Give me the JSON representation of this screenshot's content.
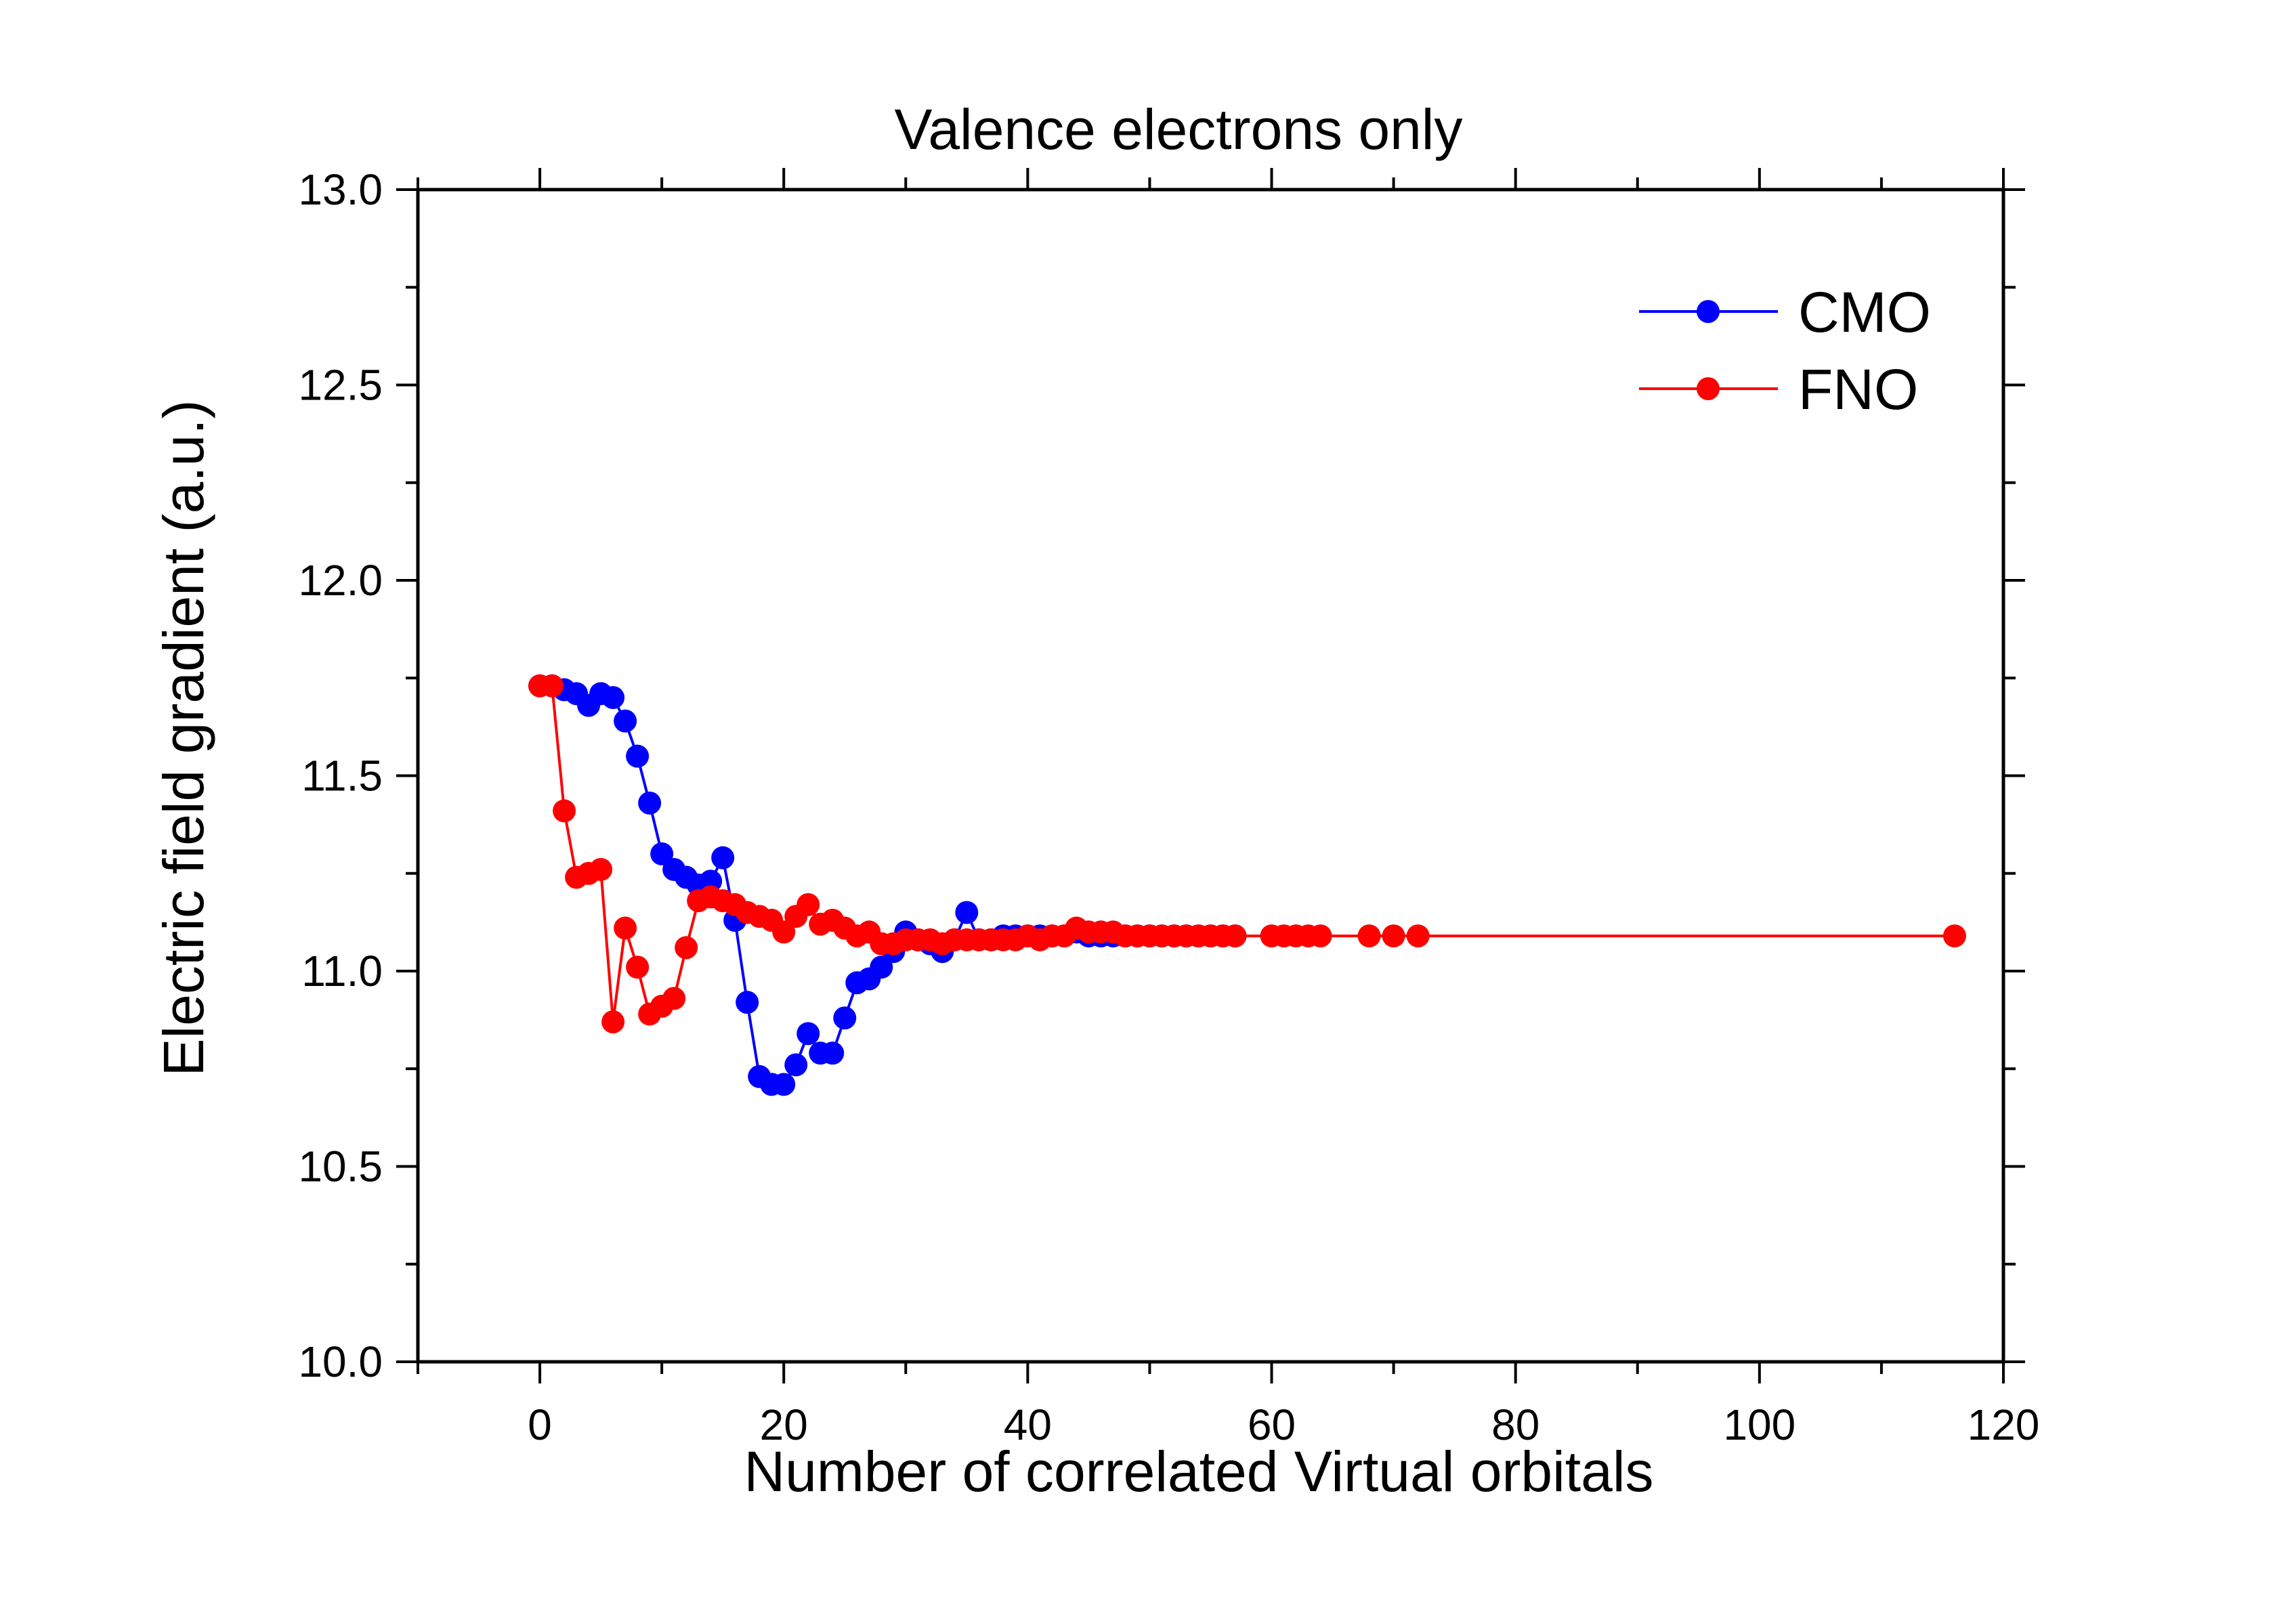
{
  "chart_data": {
    "type": "line",
    "title": "Valence electrons only",
    "xlabel": "Number of correlated Virtual orbitals",
    "ylabel": "Electric field gradient (a.u.)",
    "xlim": [
      -10,
      120
    ],
    "ylim": [
      10.0,
      13.0
    ],
    "xticks": [
      0,
      20,
      40,
      60,
      80,
      100,
      120
    ],
    "xtick_labels": [
      "0",
      "20",
      "40",
      "60",
      "80",
      "100",
      "120"
    ],
    "yticks": [
      10.0,
      10.5,
      11.0,
      11.5,
      12.0,
      12.5,
      13.0
    ],
    "ytick_labels": [
      "10.0",
      "10.5",
      "11.0",
      "11.5",
      "12.0",
      "12.5",
      "13.0"
    ],
    "grid": false,
    "legend_position": "top-right",
    "series": [
      {
        "name": "CMO",
        "color": "#0000ff",
        "x": [
          0,
          1,
          2,
          3,
          4,
          5,
          6,
          7,
          8,
          9,
          10,
          11,
          12,
          13,
          14,
          15,
          16,
          17,
          18,
          19,
          20,
          21,
          22,
          23,
          24,
          25,
          26,
          27,
          28,
          29,
          30,
          31,
          32,
          33,
          34,
          35,
          36,
          37,
          38,
          39,
          40,
          41,
          42,
          43,
          44,
          45,
          46,
          47,
          48,
          49,
          50,
          51,
          52,
          53,
          54,
          55,
          56,
          57
        ],
        "y": [
          11.73,
          11.73,
          11.72,
          11.71,
          11.68,
          11.71,
          11.7,
          11.64,
          11.55,
          11.43,
          11.3,
          11.26,
          11.24,
          11.22,
          11.23,
          11.29,
          11.13,
          10.92,
          10.73,
          10.71,
          10.71,
          10.76,
          10.84,
          10.79,
          10.79,
          10.88,
          10.97,
          10.98,
          11.01,
          11.05,
          11.1,
          11.08,
          11.07,
          11.05,
          11.08,
          11.15,
          11.08,
          11.08,
          11.09,
          11.09,
          11.09,
          11.09,
          11.09,
          11.09,
          11.1,
          11.09,
          11.09,
          11.09,
          11.09,
          11.09,
          11.09,
          11.09,
          11.09,
          11.09,
          11.09,
          11.09,
          11.09,
          11.09
        ]
      },
      {
        "name": "FNO",
        "color": "#ff0000",
        "x": [
          0,
          1,
          2,
          3,
          4,
          5,
          6,
          7,
          8,
          9,
          10,
          11,
          12,
          13,
          14,
          15,
          16,
          17,
          18,
          19,
          20,
          21,
          22,
          23,
          24,
          25,
          26,
          27,
          28,
          29,
          30,
          31,
          32,
          33,
          34,
          35,
          36,
          37,
          38,
          39,
          40,
          41,
          42,
          43,
          44,
          45,
          46,
          47,
          48,
          49,
          50,
          51,
          52,
          53,
          54,
          55,
          56,
          57,
          60,
          61,
          62,
          63,
          64,
          68,
          70,
          72,
          116
        ],
        "y": [
          11.73,
          11.73,
          11.41,
          11.24,
          11.25,
          11.26,
          10.87,
          11.11,
          11.01,
          10.89,
          10.91,
          10.93,
          11.06,
          11.18,
          11.19,
          11.18,
          11.17,
          11.15,
          11.14,
          11.13,
          11.1,
          11.14,
          11.17,
          11.12,
          11.13,
          11.11,
          11.09,
          11.1,
          11.07,
          11.07,
          11.08,
          11.08,
          11.08,
          11.07,
          11.08,
          11.08,
          11.08,
          11.08,
          11.08,
          11.08,
          11.09,
          11.08,
          11.09,
          11.09,
          11.11,
          11.1,
          11.1,
          11.1,
          11.09,
          11.09,
          11.09,
          11.09,
          11.09,
          11.09,
          11.09,
          11.09,
          11.09,
          11.09,
          11.09,
          11.09,
          11.09,
          11.09,
          11.09,
          11.09,
          11.09,
          11.09,
          11.09
        ]
      }
    ]
  }
}
